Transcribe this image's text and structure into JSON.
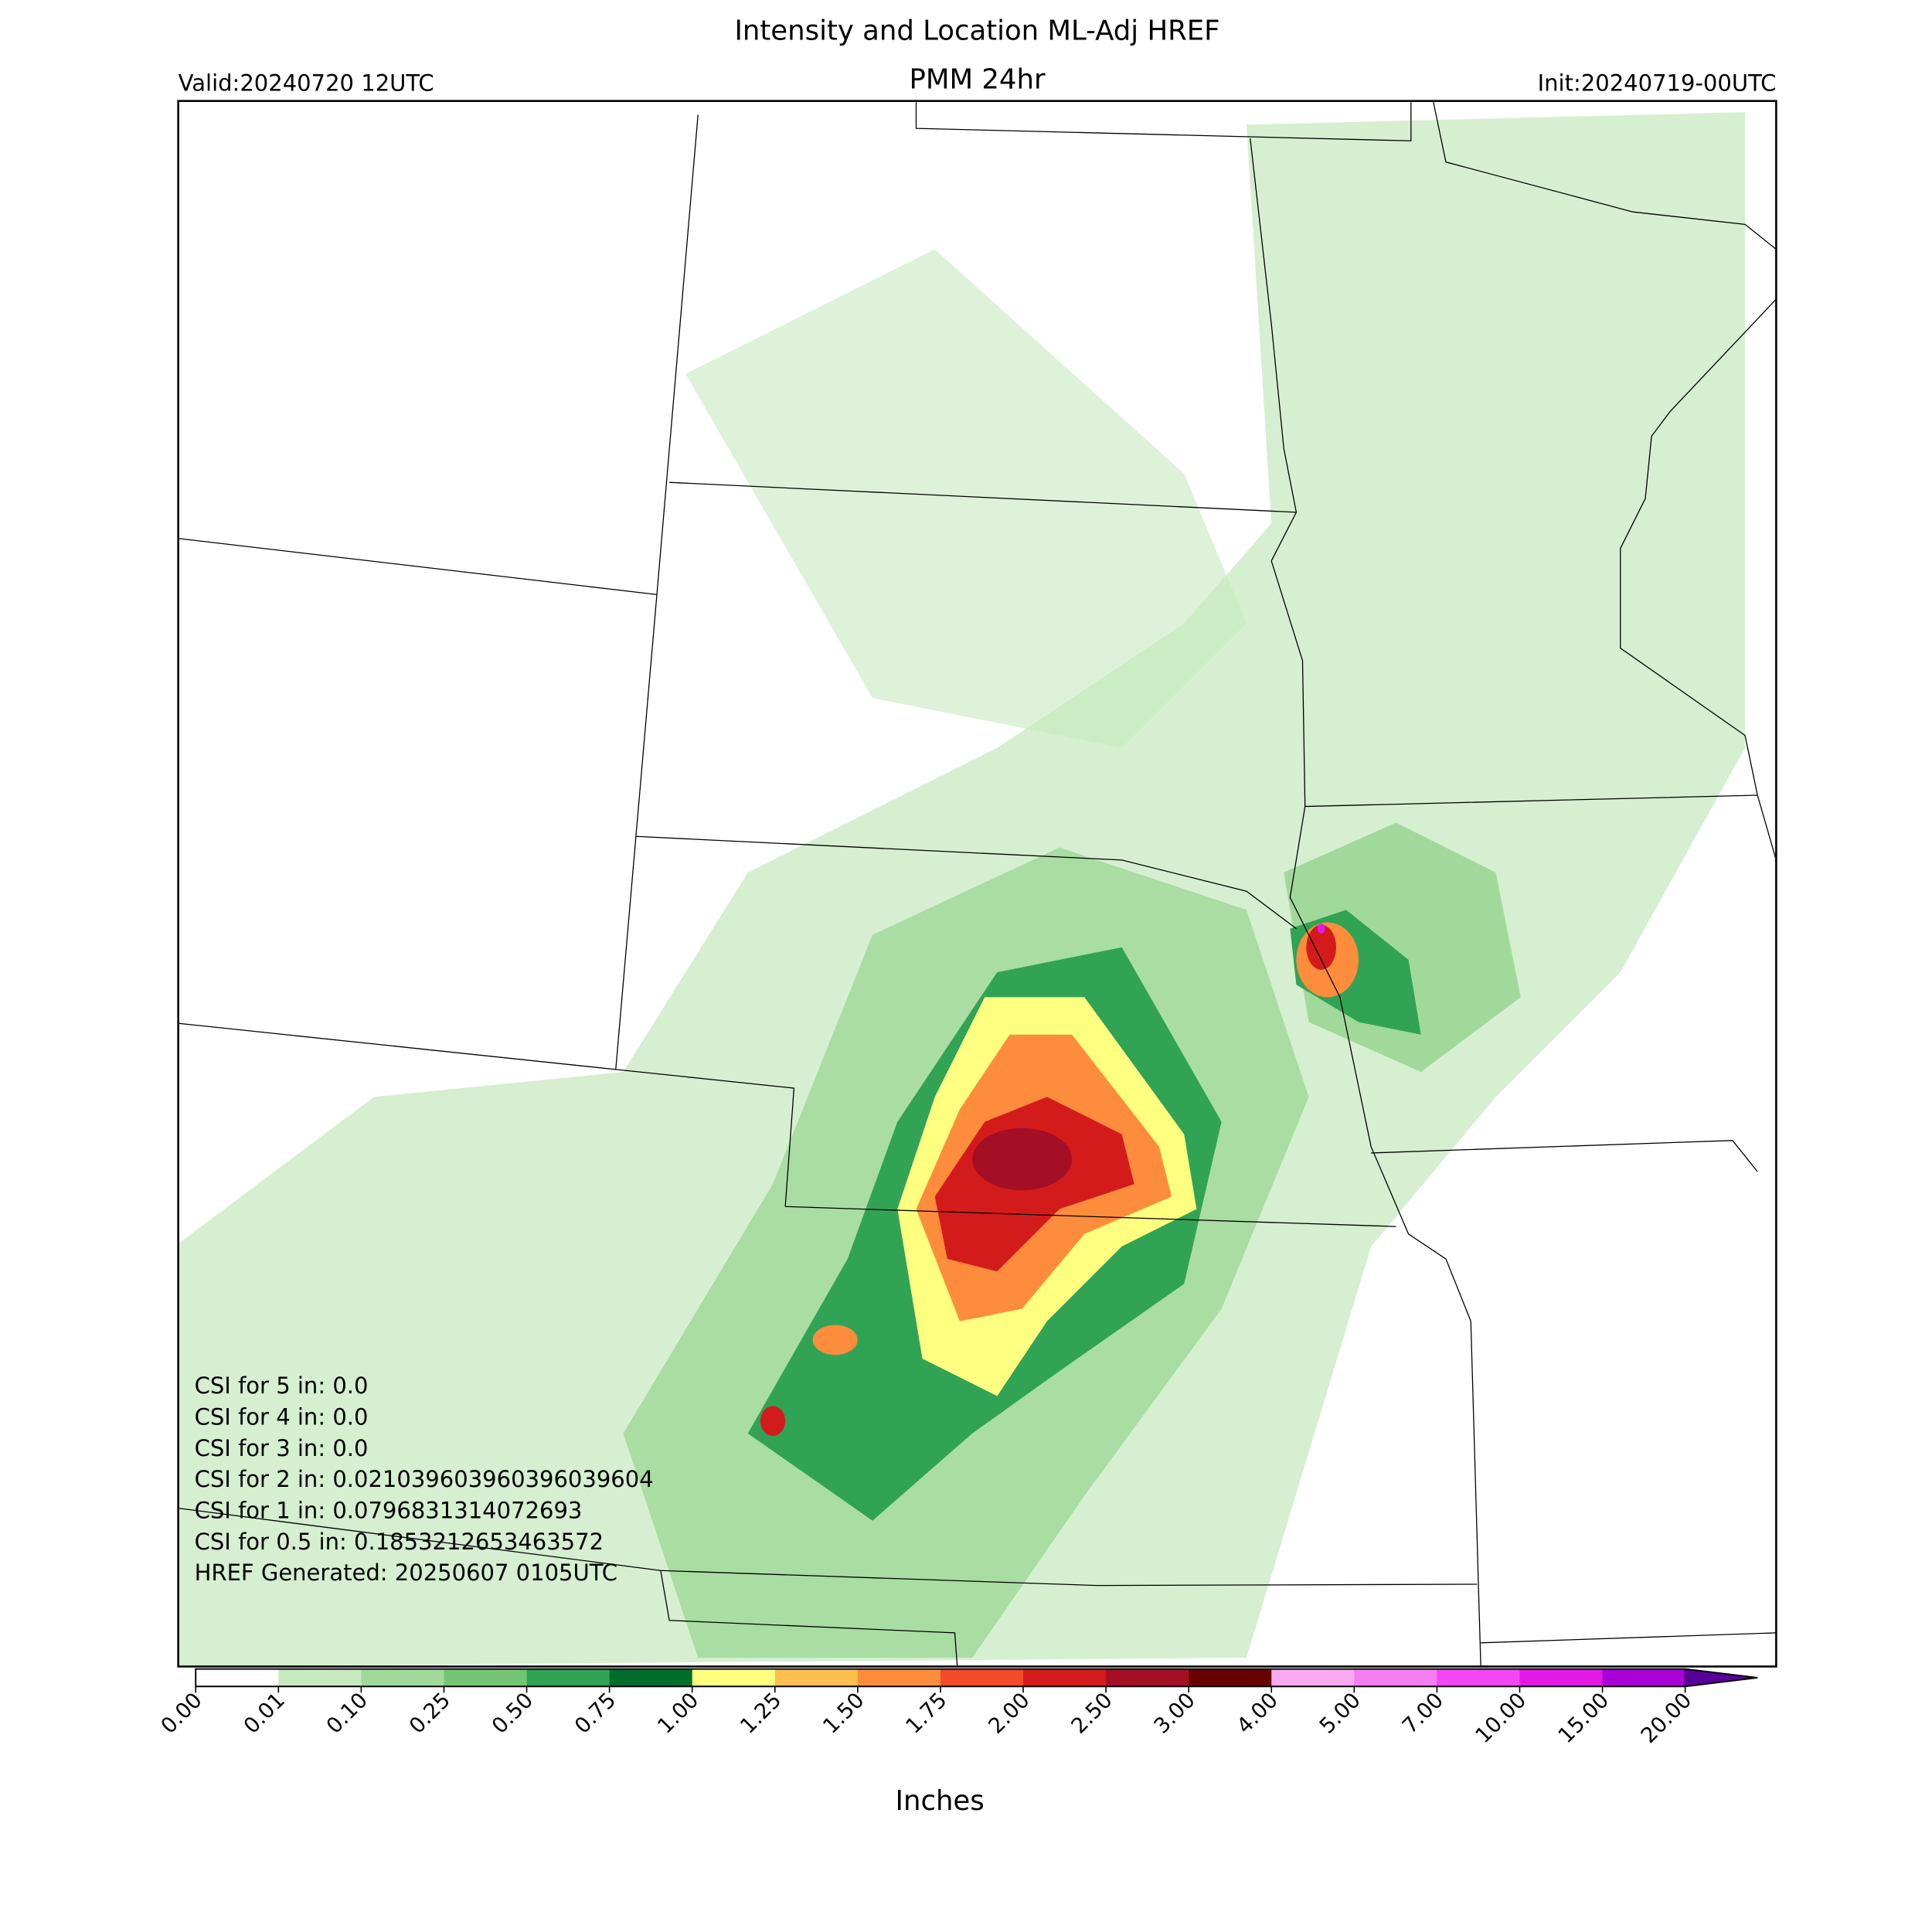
{
  "header": {
    "title": "Intensity and Location ML-Adj HREF",
    "subtitle": "PMM 24hr",
    "valid": "Valid:20240720 12UTC",
    "init": "Init:20240719-00UTC"
  },
  "stats": [
    "CSI for 5 in: 0.0",
    "CSI for 4 in: 0.0",
    "CSI for 3 in: 0.0",
    "CSI for 2 in: 0.021039603960396039604",
    "CSI for 1 in: 0.0796831314072693",
    "CSI for 0.5 in: 0.185321265346357​2",
    "HREF Generated: 20250607 0105UTC"
  ],
  "colorbar": {
    "label": "Inches",
    "ticks": [
      "0.00",
      "0.01",
      "0.10",
      "0.25",
      "0.50",
      "0.75",
      "1.00",
      "1.25",
      "1.50",
      "1.75",
      "2.00",
      "2.50",
      "3.00",
      "4.00",
      "5.00",
      "7.00",
      "10.00",
      "15.00",
      "20.00"
    ],
    "colors": [
      "#ffffff",
      "#c7e9c0",
      "#a1d99b",
      "#74c476",
      "#31a354",
      "#006d2c",
      "#ffff80",
      "#fdbf4f",
      "#fd8d3c",
      "#f34a2a",
      "#d41b1c",
      "#a50f26",
      "#670000",
      "#f7aaf0",
      "#f47ef2",
      "#f446f4",
      "#e21ae8",
      "#a800d6"
    ],
    "extend_color": "#5a009a"
  }
}
